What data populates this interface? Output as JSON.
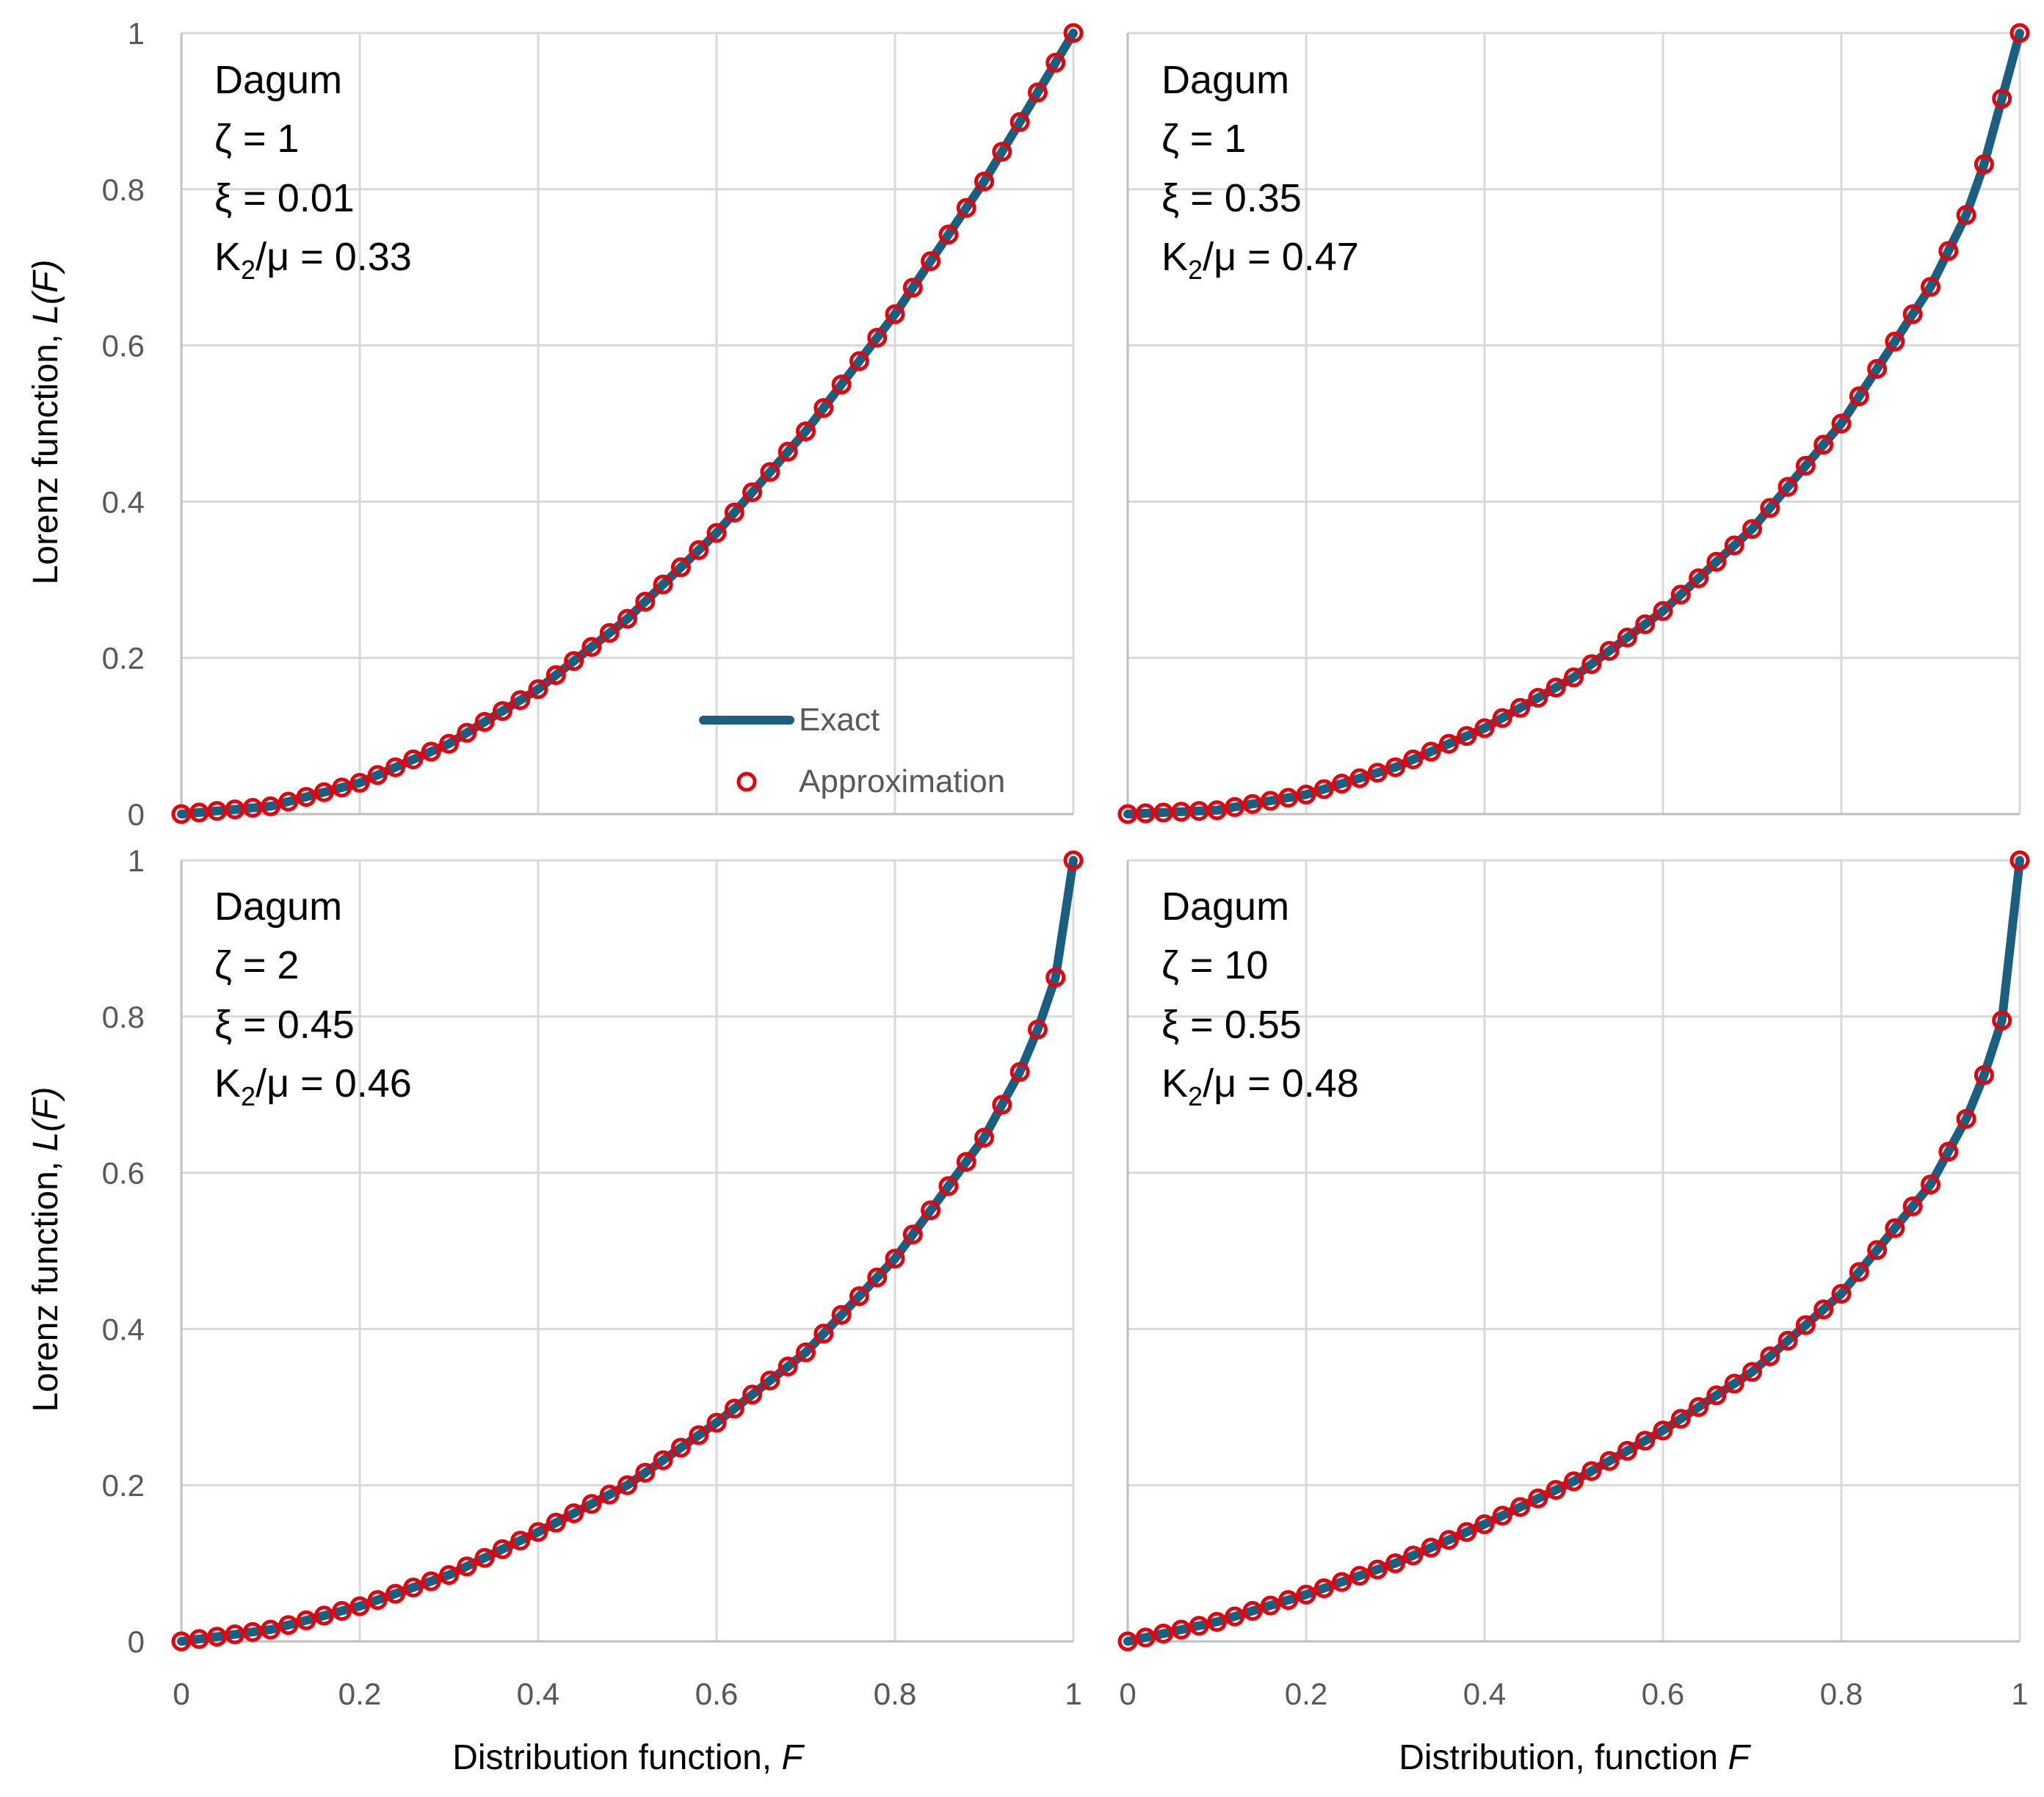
{
  "figure": {
    "colors": {
      "exact": "#1b5f80",
      "approx": "#e8000b",
      "grid": "#d9d9d9",
      "tick": "#595959"
    },
    "legend": {
      "exact_label": "Exact",
      "approx_label": "Approximation",
      "placement": "lower-right of top-left panel"
    }
  },
  "chart_data": [
    {
      "type": "line",
      "panel": "top-left",
      "title": "",
      "xlabel": "",
      "ylabel": "Lorenz function, L(F)",
      "ylabel_prefix": "Lorenz function, ",
      "ylabel_var": "L(F)",
      "xlim": [
        0,
        1
      ],
      "ylim": [
        0,
        1
      ],
      "xticks": [
        "0",
        "0.2",
        "0.4",
        "0.6",
        "0.8",
        "1"
      ],
      "yticks": [
        "0",
        "0.2",
        "0.4",
        "0.6",
        "0.8",
        "1"
      ],
      "grid": true,
      "annotations": [
        "Dagum",
        "ζ = 1",
        "ξ = 0.01",
        "K",
        "2",
        "/μ = 0.33"
      ],
      "series": [
        {
          "name": "Exact",
          "style": "line",
          "x": [
            0,
            0.1,
            0.2,
            0.3,
            0.4,
            0.5,
            0.6,
            0.7,
            0.8,
            0.9,
            1
          ],
          "y": [
            0,
            0.01,
            0.04,
            0.09,
            0.16,
            0.25,
            0.36,
            0.49,
            0.64,
            0.81,
            1
          ]
        },
        {
          "name": "Approximation",
          "style": "markers",
          "x": [
            0,
            0.1,
            0.2,
            0.3,
            0.4,
            0.5,
            0.6,
            0.7,
            0.8,
            0.9,
            1
          ],
          "y": [
            0,
            0.01,
            0.04,
            0.09,
            0.16,
            0.25,
            0.36,
            0.49,
            0.64,
            0.81,
            1
          ]
        }
      ]
    },
    {
      "type": "line",
      "panel": "top-right",
      "title": "",
      "xlabel": "",
      "ylabel": "",
      "xlim": [
        0,
        1
      ],
      "ylim": [
        0,
        1
      ],
      "xticks": [],
      "yticks": [],
      "grid": true,
      "annotations": [
        "Dagum",
        "ζ = 1",
        "ξ = 0.35",
        "K",
        "2",
        "/μ = 0.47"
      ],
      "series": [
        {
          "name": "Exact",
          "style": "line",
          "x": [
            0,
            0.1,
            0.2,
            0.3,
            0.4,
            0.5,
            0.6,
            0.7,
            0.8,
            0.9,
            0.95,
            1
          ],
          "y": [
            0,
            0.005,
            0.025,
            0.06,
            0.11,
            0.175,
            0.26,
            0.365,
            0.5,
            0.675,
            0.79,
            1
          ]
        },
        {
          "name": "Approximation",
          "style": "markers",
          "x": [
            0,
            0.1,
            0.2,
            0.3,
            0.4,
            0.5,
            0.6,
            0.7,
            0.8,
            0.9,
            0.95,
            1
          ],
          "y": [
            0,
            0.005,
            0.025,
            0.06,
            0.11,
            0.175,
            0.26,
            0.365,
            0.5,
            0.675,
            0.79,
            1
          ]
        }
      ]
    },
    {
      "type": "line",
      "panel": "bottom-left",
      "title": "",
      "xlabel": "Distribution function, F",
      "xlabel_prefix": "Distribution function, ",
      "xlabel_var": "F",
      "ylabel": "Lorenz function, L(F)",
      "ylabel_prefix": "Lorenz function, ",
      "ylabel_var": "L(F)",
      "xlim": [
        0,
        1
      ],
      "ylim": [
        0,
        1
      ],
      "xticks": [
        "0",
        "0.2",
        "0.4",
        "0.6",
        "0.8",
        "1"
      ],
      "yticks": [
        "0",
        "0.2",
        "0.4",
        "0.6",
        "0.8",
        "1"
      ],
      "grid": true,
      "annotations": [
        "Dagum",
        "ζ = 2",
        "ξ = 0.45",
        "K",
        "2",
        "/μ = 0.46"
      ],
      "series": [
        {
          "name": "Exact",
          "style": "line",
          "x": [
            0,
            0.1,
            0.2,
            0.3,
            0.4,
            0.5,
            0.6,
            0.7,
            0.8,
            0.9,
            0.95,
            0.98,
            1
          ],
          "y": [
            0,
            0.015,
            0.045,
            0.085,
            0.14,
            0.2,
            0.28,
            0.37,
            0.49,
            0.645,
            0.75,
            0.85,
            1
          ]
        },
        {
          "name": "Approximation",
          "style": "markers",
          "x": [
            0,
            0.1,
            0.2,
            0.3,
            0.4,
            0.5,
            0.6,
            0.7,
            0.8,
            0.9,
            0.95,
            0.98,
            1
          ],
          "y": [
            0,
            0.015,
            0.045,
            0.085,
            0.14,
            0.2,
            0.28,
            0.37,
            0.49,
            0.645,
            0.75,
            0.85,
            1
          ]
        }
      ]
    },
    {
      "type": "line",
      "panel": "bottom-right",
      "title": "",
      "xlabel": "Distribution, function F",
      "xlabel_prefix": "Distribution, function ",
      "xlabel_var": "F",
      "ylabel": "",
      "xlim": [
        0,
        1
      ],
      "ylim": [
        0,
        1
      ],
      "xticks": [
        "0",
        "0.2",
        "0.4",
        "0.6",
        "0.8",
        "1"
      ],
      "yticks": [],
      "grid": true,
      "annotations": [
        "Dagum",
        "ζ = 10",
        "ξ = 0.55",
        "K",
        "2",
        "/μ = 0.48"
      ],
      "series": [
        {
          "name": "Exact",
          "style": "line",
          "x": [
            0,
            0.1,
            0.2,
            0.3,
            0.4,
            0.5,
            0.6,
            0.7,
            0.8,
            0.9,
            0.95,
            0.98,
            1
          ],
          "y": [
            0,
            0.025,
            0.06,
            0.1,
            0.15,
            0.205,
            0.27,
            0.345,
            0.445,
            0.585,
            0.69,
            0.795,
            1
          ]
        },
        {
          "name": "Approximation",
          "style": "markers",
          "x": [
            0,
            0.1,
            0.2,
            0.3,
            0.4,
            0.5,
            0.6,
            0.7,
            0.8,
            0.9,
            0.95,
            0.98,
            1
          ],
          "y": [
            0,
            0.025,
            0.06,
            0.1,
            0.15,
            0.205,
            0.27,
            0.345,
            0.445,
            0.585,
            0.69,
            0.795,
            1
          ]
        }
      ]
    }
  ]
}
